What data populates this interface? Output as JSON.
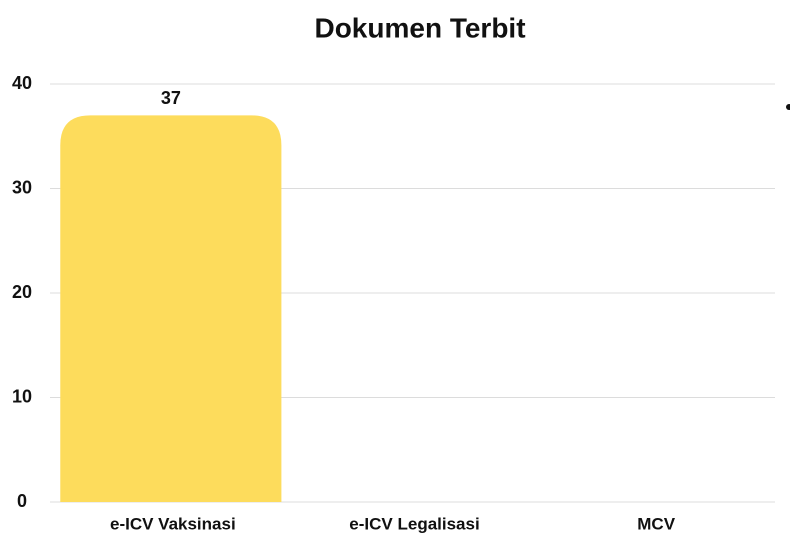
{
  "chart_data": {
    "type": "bar",
    "title": "Dokumen Terbit",
    "categories": [
      "e-ICV Vaksinasi",
      "e-ICV Legalisasi",
      "MCV"
    ],
    "values": [
      37,
      0,
      0
    ],
    "value_labels": [
      "37",
      null,
      null
    ],
    "color": "#fddc5c",
    "ylim": [
      0,
      40
    ],
    "yticks": [
      0,
      10,
      20,
      30,
      40
    ],
    "grid": true
  }
}
